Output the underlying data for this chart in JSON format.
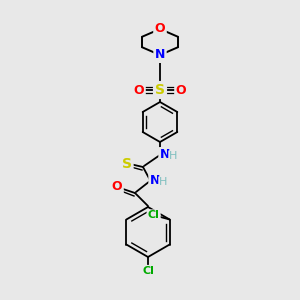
{
  "bg_color": "#e8e8e8",
  "bond_color": "#000000",
  "atom_colors": {
    "O": "#ff0000",
    "N": "#0000ff",
    "S": "#cccc00",
    "Cl": "#00aa00",
    "C": "#000000",
    "H": "#7fbfbf"
  },
  "figsize": [
    3.0,
    3.0
  ],
  "dpi": 100
}
